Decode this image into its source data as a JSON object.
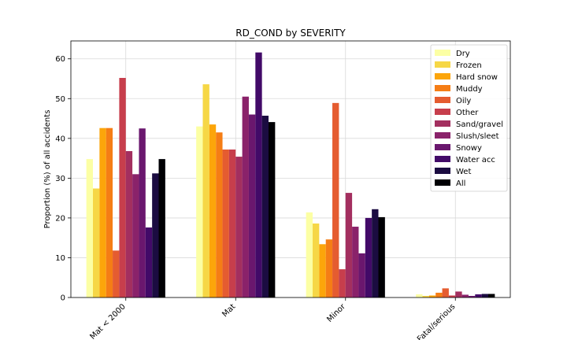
{
  "chart_data": {
    "type": "bar",
    "title": "RD_COND by SEVERITY",
    "xlabel": "",
    "ylabel": "Proportion (%) of all accidents",
    "categories": [
      "Mat < 2000",
      "Mat",
      "Minor",
      "Fatal/serious"
    ],
    "ylim": [
      0,
      64.5
    ],
    "yticks": [
      0,
      10,
      20,
      30,
      40,
      50,
      60
    ],
    "grid": true,
    "legend_position": "top-right",
    "series": [
      {
        "name": "Dry",
        "color": "#fcffa4",
        "values": [
          34.8,
          43.0,
          21.4,
          0.8
        ]
      },
      {
        "name": "Frozen",
        "color": "#f6d746",
        "values": [
          27.4,
          53.6,
          18.6,
          0.4
        ]
      },
      {
        "name": "Hard snow",
        "color": "#fca50a",
        "values": [
          42.6,
          43.5,
          13.4,
          0.5
        ]
      },
      {
        "name": "Muddy",
        "color": "#f57d15",
        "values": [
          42.6,
          41.5,
          14.6,
          1.2
        ]
      },
      {
        "name": "Oily",
        "color": "#e55c30",
        "values": [
          11.8,
          37.2,
          48.9,
          2.3
        ]
      },
      {
        "name": "Other",
        "color": "#c73e4c",
        "values": [
          55.2,
          37.2,
          7.1,
          0.5
        ]
      },
      {
        "name": "Sand/gravel",
        "color": "#a32f5f",
        "values": [
          36.8,
          35.4,
          26.3,
          1.5
        ]
      },
      {
        "name": "Slush/sleet",
        "color": "#8a226a",
        "values": [
          31.0,
          50.5,
          17.8,
          0.7
        ]
      },
      {
        "name": "Snowy",
        "color": "#6a176e",
        "values": [
          42.5,
          46.0,
          11.1,
          0.4
        ]
      },
      {
        "name": "Water acc",
        "color": "#420a68",
        "values": [
          17.6,
          61.6,
          20.0,
          0.8
        ]
      },
      {
        "name": "Wet",
        "color": "#1b0c41",
        "values": [
          31.2,
          45.7,
          22.2,
          0.9
        ]
      },
      {
        "name": "All",
        "color": "#000004",
        "values": [
          34.8,
          44.1,
          20.2,
          0.9
        ]
      }
    ]
  }
}
